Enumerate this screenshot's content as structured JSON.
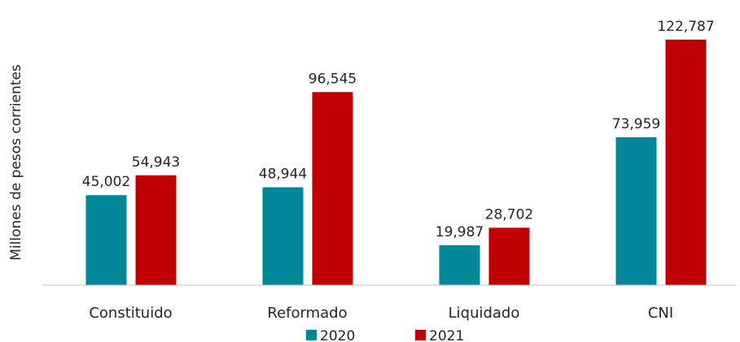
{
  "chart_data": {
    "type": "bar",
    "y_label": "Millones de pesos corrientes",
    "categories": [
      "Constituido",
      "Reformado",
      "Liquidado",
      "CNI"
    ],
    "series": [
      {
        "name": "2020",
        "color": "#00879a",
        "values": [
          45002,
          48944,
          19987,
          73959
        ],
        "value_labels": [
          "45,002",
          "48,944",
          "19,987",
          "73,959"
        ]
      },
      {
        "name": "2021",
        "color": "#c00000",
        "values": [
          54943,
          96545,
          28702,
          122787
        ],
        "value_labels": [
          "54,943",
          "96,545",
          "28,702",
          "122,787"
        ]
      }
    ],
    "ylim": [
      0,
      130000
    ],
    "legend": "bottom"
  }
}
